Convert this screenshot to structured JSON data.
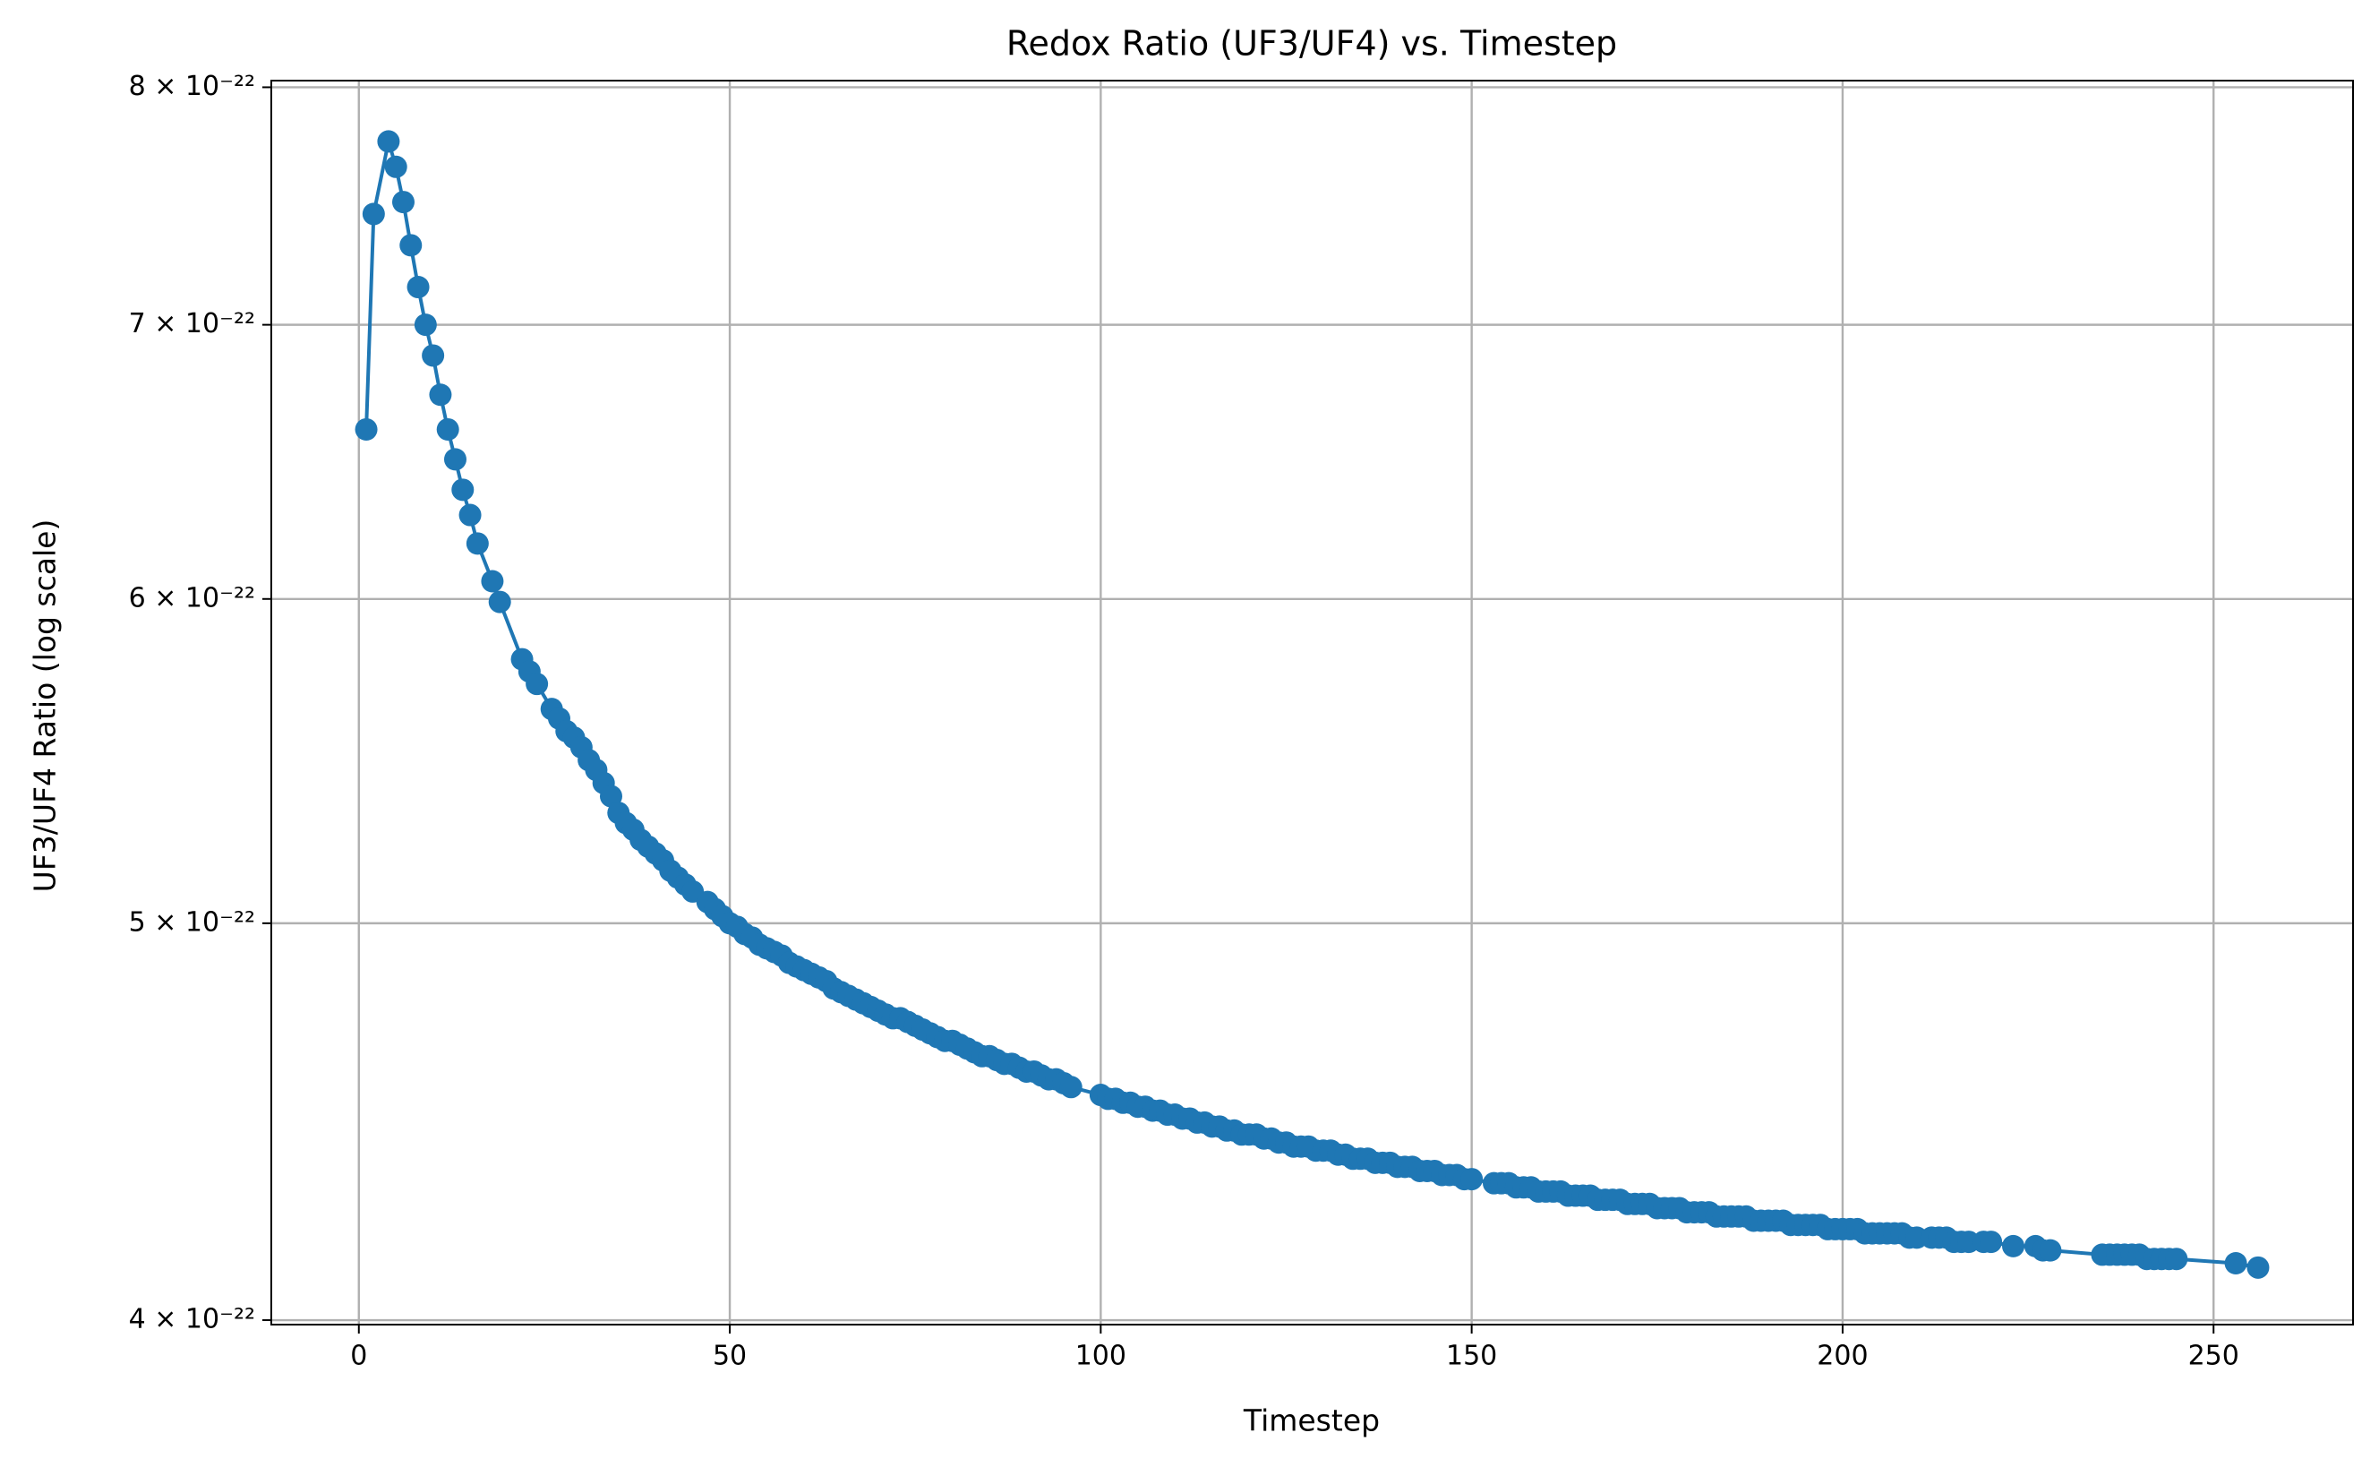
{
  "chart_data": {
    "type": "line",
    "title": "Redox Ratio (UF3/UF4) vs. Timestep",
    "xlabel": "Timestep",
    "ylabel": "UF3/UF4 Ratio (log scale)",
    "yscale": "log",
    "grid": true,
    "color": "#1f77b4",
    "xlim": [
      -11.8,
      268.8
    ],
    "ylim": [
      3.99e-22,
      8.03e-22
    ],
    "xticks": [
      0,
      50,
      100,
      150,
      200,
      250
    ],
    "yticks": [
      {
        "value": 4e-22,
        "label": "4 × 10⁻²²"
      },
      {
        "value": 5e-22,
        "label": "5 × 10⁻²²"
      },
      {
        "value": 6e-22,
        "label": "6 × 10⁻²²"
      },
      {
        "value": 7e-22,
        "label": "7 × 10⁻²²"
      },
      {
        "value": 8e-22,
        "label": "8 × 10⁻²²"
      }
    ],
    "x": [
      1,
      2,
      4,
      5,
      6,
      7,
      8,
      9,
      10,
      11,
      12,
      13,
      14,
      15,
      16,
      18,
      19,
      22,
      23,
      24,
      26,
      27,
      28,
      29,
      30,
      31,
      32,
      33,
      34,
      35,
      36,
      37,
      38,
      39,
      40,
      41,
      42,
      43,
      44,
      45,
      47,
      48,
      49,
      50,
      51,
      52,
      53,
      54,
      55,
      56,
      57,
      58,
      59,
      60,
      61,
      62,
      63,
      64,
      65,
      66,
      67,
      68,
      69,
      70,
      71,
      72,
      73,
      74,
      75,
      76,
      77,
      78,
      79,
      80,
      81,
      82,
      83,
      84,
      85,
      86,
      87,
      88,
      89,
      90,
      91,
      92,
      93,
      94,
      95,
      96,
      100,
      101,
      102,
      103,
      104,
      105,
      106,
      107,
      108,
      109,
      110,
      111,
      112,
      113,
      114,
      115,
      116,
      117,
      118,
      119,
      120,
      121,
      122,
      123,
      124,
      125,
      126,
      127,
      128,
      129,
      130,
      131,
      132,
      133,
      134,
      135,
      136,
      137,
      138,
      139,
      140,
      141,
      142,
      143,
      144,
      145,
      146,
      147,
      148,
      149,
      150,
      153,
      154,
      155,
      156,
      157,
      158,
      159,
      160,
      161,
      162,
      163,
      164,
      165,
      166,
      167,
      168,
      169,
      170,
      171,
      172,
      173,
      174,
      175,
      176,
      177,
      178,
      179,
      180,
      181,
      182,
      183,
      184,
      185,
      186,
      187,
      188,
      189,
      190,
      191,
      192,
      193,
      194,
      195,
      196,
      197,
      198,
      199,
      200,
      201,
      202,
      203,
      204,
      205,
      206,
      207,
      208,
      209,
      210,
      212,
      213,
      214,
      215,
      216,
      217,
      219,
      220,
      223,
      226,
      227,
      228,
      235,
      236,
      237,
      238,
      239,
      240,
      241,
      242,
      243,
      244,
      245,
      253,
      256
    ],
    "values": [
      6.6e-22,
      7.45e-22,
      7.76e-22,
      7.65e-22,
      7.5e-22,
      7.32e-22,
      7.15e-22,
      7e-22,
      6.88e-22,
      6.73e-22,
      6.6e-22,
      6.49e-22,
      6.38e-22,
      6.29e-22,
      6.19e-22,
      6.06e-22,
      5.99e-22,
      5.8e-22,
      5.76e-22,
      5.72e-22,
      5.64e-22,
      5.61e-22,
      5.57e-22,
      5.55e-22,
      5.52e-22,
      5.48e-22,
      5.45e-22,
      5.41e-22,
      5.37e-22,
      5.32e-22,
      5.29e-22,
      5.27e-22,
      5.24e-22,
      5.22e-22,
      5.2e-22,
      5.18e-22,
      5.15e-22,
      5.13e-22,
      5.11e-22,
      5.09e-22,
      5.06e-22,
      5.04e-22,
      5.02e-22,
      5e-22,
      4.99e-22,
      4.97e-22,
      4.96e-22,
      4.94e-22,
      4.93e-22,
      4.92e-22,
      4.91e-22,
      4.89e-22,
      4.88e-22,
      4.87e-22,
      4.86e-22,
      4.85e-22,
      4.84e-22,
      4.82e-22,
      4.81e-22,
      4.8e-22,
      4.79e-22,
      4.78e-22,
      4.77e-22,
      4.76e-22,
      4.75e-22,
      4.74e-22,
      4.74e-22,
      4.73e-22,
      4.72e-22,
      4.71e-22,
      4.7e-22,
      4.69e-22,
      4.68e-22,
      4.68e-22,
      4.67e-22,
      4.66e-22,
      4.65e-22,
      4.64e-22,
      4.64e-22,
      4.63e-22,
      4.62e-22,
      4.62e-22,
      4.61e-22,
      4.6e-22,
      4.6e-22,
      4.59e-22,
      4.58e-22,
      4.58e-22,
      4.57e-22,
      4.56e-22,
      4.54e-22,
      4.53e-22,
      4.53e-22,
      4.52e-22,
      4.52e-22,
      4.51e-22,
      4.51e-22,
      4.5e-22,
      4.5e-22,
      4.49e-22,
      4.49e-22,
      4.48e-22,
      4.48e-22,
      4.47e-22,
      4.47e-22,
      4.46e-22,
      4.46e-22,
      4.45e-22,
      4.45e-22,
      4.44e-22,
      4.44e-22,
      4.44e-22,
      4.43e-22,
      4.43e-22,
      4.42e-22,
      4.42e-22,
      4.41e-22,
      4.41e-22,
      4.41e-22,
      4.4e-22,
      4.4e-22,
      4.4e-22,
      4.39e-22,
      4.39e-22,
      4.38e-22,
      4.38e-22,
      4.38e-22,
      4.37e-22,
      4.37e-22,
      4.37e-22,
      4.36e-22,
      4.36e-22,
      4.36e-22,
      4.35e-22,
      4.35e-22,
      4.35e-22,
      4.34e-22,
      4.34e-22,
      4.34e-22,
      4.33e-22,
      4.33e-22,
      4.32e-22,
      4.32e-22,
      4.32e-22,
      4.31e-22,
      4.31e-22,
      4.31e-22,
      4.3e-22,
      4.3e-22,
      4.3e-22,
      4.3e-22,
      4.29e-22,
      4.29e-22,
      4.29e-22,
      4.29e-22,
      4.28e-22,
      4.28e-22,
      4.28e-22,
      4.28e-22,
      4.27e-22,
      4.27e-22,
      4.27e-22,
      4.27e-22,
      4.26e-22,
      4.26e-22,
      4.26e-22,
      4.26e-22,
      4.25e-22,
      4.25e-22,
      4.25e-22,
      4.25e-22,
      4.24e-22,
      4.24e-22,
      4.24e-22,
      4.24e-22,
      4.24e-22,
      4.23e-22,
      4.23e-22,
      4.23e-22,
      4.23e-22,
      4.23e-22,
      4.22e-22,
      4.22e-22,
      4.22e-22,
      4.22e-22,
      4.22e-22,
      4.21e-22,
      4.21e-22,
      4.21e-22,
      4.21e-22,
      4.21e-22,
      4.2e-22,
      4.2e-22,
      4.2e-22,
      4.2e-22,
      4.2e-22,
      4.2e-22,
      4.19e-22,
      4.19e-22,
      4.19e-22,
      4.19e-22,
      4.19e-22,
      4.18e-22,
      4.18e-22,
      4.18e-22,
      4.18e-22,
      4.18e-22,
      4.17e-22,
      4.17e-22,
      4.16e-22,
      4.16e-22,
      4.15e-22,
      4.15e-22,
      4.15e-22,
      4.15e-22,
      4.15e-22,
      4.15e-22,
      4.14e-22,
      4.14e-22,
      4.14e-22,
      4.14e-22,
      4.14e-22,
      4.13e-22,
      4.12e-22
    ]
  }
}
